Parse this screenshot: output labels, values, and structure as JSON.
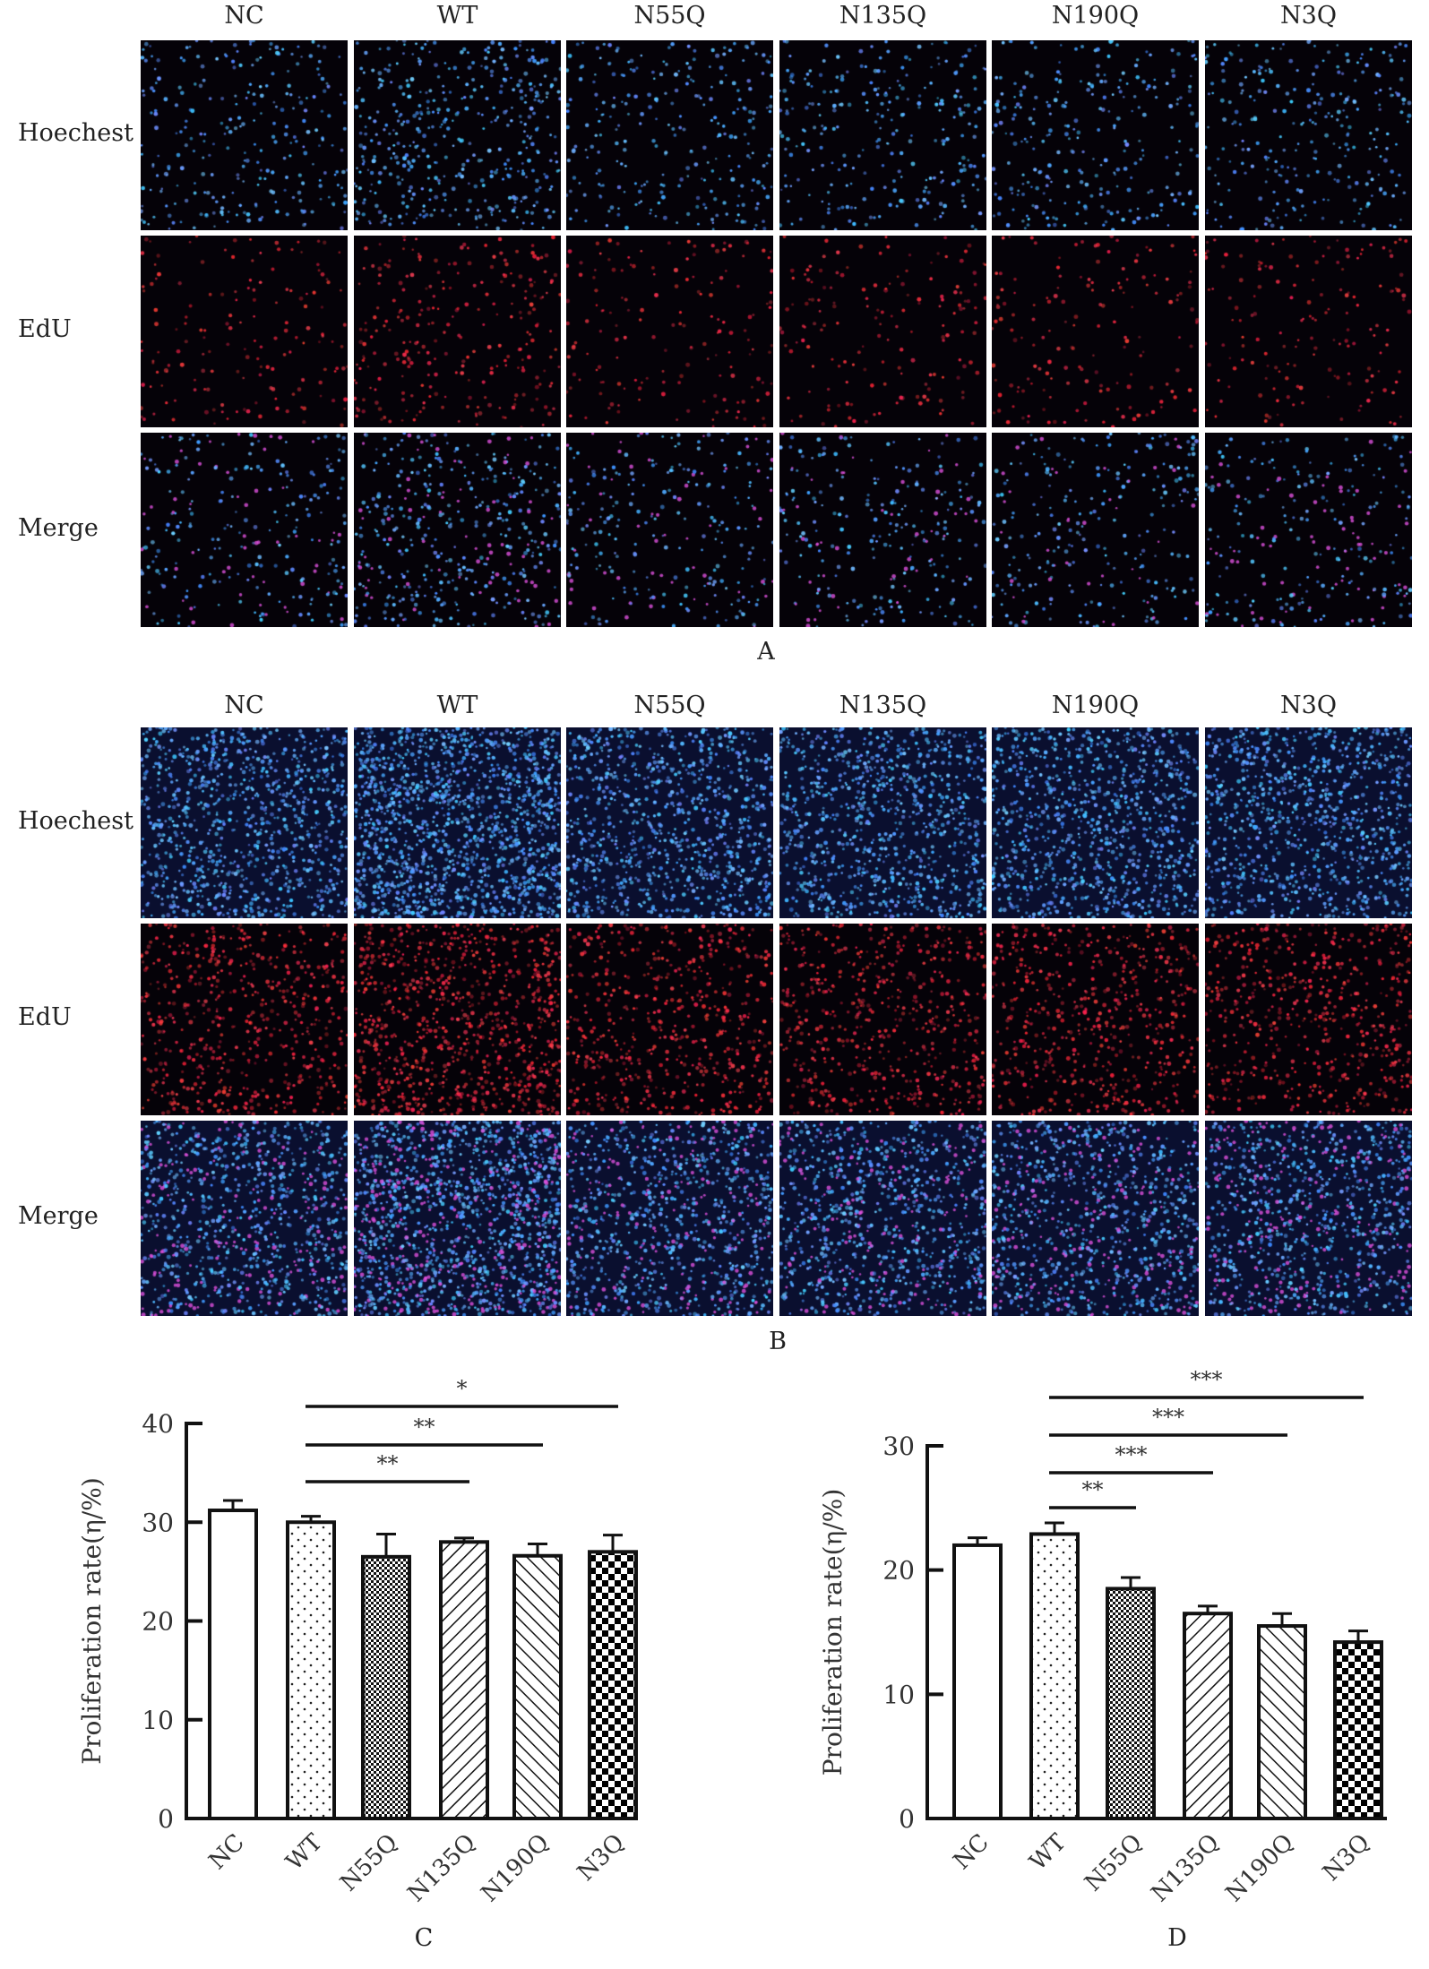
{
  "columns": [
    "NC",
    "WT",
    "N55Q",
    "N135Q",
    "N190Q",
    "N3Q"
  ],
  "rows": [
    "Hoechest",
    "EdU",
    "Merge"
  ],
  "panels": {
    "a": "A",
    "b": "B",
    "c": "C",
    "d": "D"
  },
  "colors": {
    "hoechst": "#3a8cff",
    "edu": "#ff2a3a",
    "merge_pink": "#d24adc"
  },
  "chart_data": [
    {
      "type": "bar",
      "panel": "C",
      "categories": [
        "NC",
        "WT",
        "N55Q",
        "N135Q",
        "N190Q",
        "N3Q"
      ],
      "values": [
        31.2,
        30.0,
        26.5,
        28.0,
        26.6,
        27.0
      ],
      "errors": [
        1.0,
        0.6,
        2.3,
        0.4,
        1.2,
        1.7
      ],
      "patterns": [
        "none",
        "dots",
        "fine-check",
        "diag-right",
        "diag-left",
        "check"
      ],
      "ylabel": "Proliferation rate(η/%)",
      "ylim": [
        0,
        40
      ],
      "yticks": [
        0,
        10,
        20,
        30,
        40
      ],
      "significance": [
        {
          "from": "WT",
          "to": "N135Q",
          "label": "**"
        },
        {
          "from": "WT",
          "to": "N190Q",
          "label": "**"
        },
        {
          "from": "WT",
          "to": "N3Q",
          "label": "*"
        }
      ]
    },
    {
      "type": "bar",
      "panel": "D",
      "categories": [
        "NC",
        "WT",
        "N55Q",
        "N135Q",
        "N190Q",
        "N3Q"
      ],
      "values": [
        22.0,
        22.9,
        18.5,
        16.5,
        15.5,
        14.2
      ],
      "errors": [
        0.6,
        0.9,
        0.9,
        0.6,
        1.0,
        0.9
      ],
      "patterns": [
        "none",
        "dots",
        "fine-check",
        "diag-right",
        "diag-left",
        "check"
      ],
      "ylabel": "Proliferation rate(η/%)",
      "ylim": [
        0,
        30
      ],
      "yticks": [
        0,
        10,
        20,
        30
      ],
      "significance": [
        {
          "from": "WT",
          "to": "N55Q",
          "label": "**"
        },
        {
          "from": "WT",
          "to": "N135Q",
          "label": "***"
        },
        {
          "from": "WT",
          "to": "N190Q",
          "label": "***"
        },
        {
          "from": "WT",
          "to": "N3Q",
          "label": "***"
        }
      ]
    }
  ]
}
